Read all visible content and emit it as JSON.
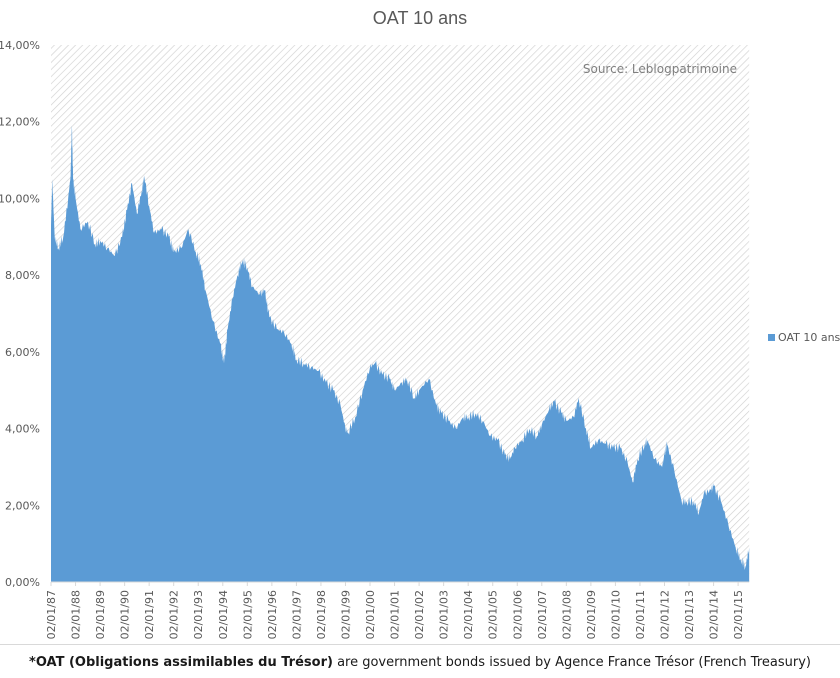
{
  "chart_data": {
    "type": "area",
    "title": "OAT 10 ans",
    "annotation": "Source: Leblogpatrimoine",
    "legend": {
      "label": "OAT 10 ans",
      "placement": "right"
    },
    "colors": {
      "series": "#5b9bd5",
      "hatch": "#d0d0d0",
      "text": "#595959",
      "axis": "#d9d9d9"
    },
    "xlabel": "",
    "ylabel": "",
    "ylim": [
      0,
      14
    ],
    "xlim": [
      1987.0,
      2015.45
    ],
    "yticks": [
      0,
      2,
      4,
      6,
      8,
      10,
      12,
      14
    ],
    "ytick_labels": [
      "0,00%",
      "2,00%",
      "4,00%",
      "6,00%",
      "8,00%",
      "10,00%",
      "12,00%",
      "14,00%"
    ],
    "xtick_labels": [
      "02/01/87",
      "02/01/88",
      "02/01/89",
      "02/01/90",
      "02/01/91",
      "02/01/92",
      "02/01/93",
      "02/01/94",
      "02/01/95",
      "02/01/96",
      "02/01/97",
      "02/01/98",
      "02/01/99",
      "02/01/00",
      "02/01/01",
      "02/01/02",
      "02/01/03",
      "02/01/04",
      "02/01/05",
      "02/01/06",
      "02/01/07",
      "02/01/08",
      "02/01/09",
      "02/01/10",
      "02/01/11",
      "02/01/12",
      "02/01/13",
      "02/01/14",
      "02/01/15"
    ],
    "series": [
      {
        "name": "OAT 10 ans",
        "x": [
          1987.0,
          1987.05,
          1987.15,
          1987.3,
          1987.5,
          1987.7,
          1987.8,
          1987.85,
          1987.9,
          1988.0,
          1988.2,
          1988.5,
          1988.8,
          1989.0,
          1989.3,
          1989.6,
          1989.9,
          1990.1,
          1990.3,
          1990.5,
          1990.7,
          1990.8,
          1991.0,
          1991.2,
          1991.5,
          1991.8,
          1992.0,
          1992.3,
          1992.6,
          1992.9,
          1993.1,
          1993.3,
          1993.6,
          1993.9,
          1994.05,
          1994.2,
          1994.4,
          1994.6,
          1994.8,
          1995.0,
          1995.2,
          1995.5,
          1995.7,
          1995.9,
          1996.2,
          1996.5,
          1996.8,
          1997.0,
          1997.3,
          1997.6,
          1997.9,
          1998.2,
          1998.5,
          1998.8,
          1999.0,
          1999.1,
          1999.4,
          1999.7,
          2000.0,
          2000.2,
          2000.5,
          2000.8,
          2001.0,
          2001.3,
          2001.5,
          2001.8,
          2002.0,
          2002.4,
          2002.7,
          2002.9,
          2003.2,
          2003.5,
          2003.8,
          2004.0,
          2004.3,
          2004.6,
          2004.9,
          2005.2,
          2005.5,
          2005.7,
          2005.9,
          2006.2,
          2006.5,
          2006.8,
          2007.0,
          2007.3,
          2007.5,
          2007.8,
          2008.0,
          2008.3,
          2008.5,
          2008.8,
          2009.0,
          2009.3,
          2009.6,
          2009.9,
          2010.2,
          2010.5,
          2010.7,
          2010.9,
          2011.2,
          2011.3,
          2011.6,
          2011.9,
          2012.0,
          2012.1,
          2012.4,
          2012.7,
          2012.9,
          2013.2,
          2013.4,
          2013.6,
          2013.9,
          2014.0,
          2014.3,
          2014.6,
          2014.9,
          2015.1,
          2015.3,
          2015.45
        ],
        "values": [
          9.3,
          10.5,
          9.0,
          8.7,
          9.0,
          10.0,
          10.6,
          11.9,
          10.5,
          10.0,
          9.2,
          9.4,
          8.8,
          8.9,
          8.7,
          8.5,
          9.0,
          9.7,
          10.4,
          9.6,
          10.2,
          10.6,
          9.8,
          9.1,
          9.2,
          9.0,
          8.6,
          8.7,
          9.2,
          8.6,
          8.3,
          7.6,
          6.8,
          6.2,
          5.7,
          6.6,
          7.4,
          8.0,
          8.4,
          8.2,
          7.7,
          7.5,
          7.6,
          6.9,
          6.6,
          6.5,
          6.2,
          5.8,
          5.7,
          5.6,
          5.5,
          5.2,
          5.0,
          4.6,
          4.0,
          3.9,
          4.3,
          5.0,
          5.6,
          5.7,
          5.4,
          5.3,
          5.0,
          5.2,
          5.3,
          4.8,
          5.0,
          5.3,
          4.6,
          4.4,
          4.2,
          4.0,
          4.3,
          4.3,
          4.4,
          4.2,
          3.8,
          3.7,
          3.3,
          3.2,
          3.5,
          3.7,
          4.0,
          3.8,
          4.1,
          4.5,
          4.7,
          4.4,
          4.2,
          4.3,
          4.8,
          4.0,
          3.5,
          3.7,
          3.6,
          3.5,
          3.5,
          3.1,
          2.6,
          3.2,
          3.6,
          3.7,
          3.2,
          3.0,
          3.3,
          3.6,
          2.9,
          2.1,
          2.1,
          2.1,
          1.8,
          2.3,
          2.4,
          2.5,
          2.1,
          1.5,
          0.9,
          0.6,
          0.4,
          0.9
        ]
      }
    ]
  },
  "footnote": {
    "bold": "*OAT  (Obligations assimilables du Trésor)",
    "rest": " are government bonds issued by Agence France Trésor (French Treasury)"
  }
}
